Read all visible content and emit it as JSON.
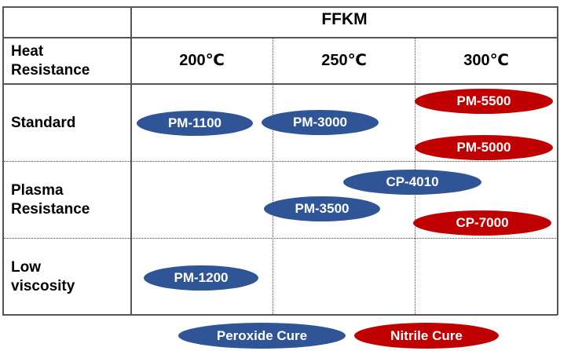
{
  "header": {
    "title": "FFKM",
    "heat_label": "Heat\nResistance",
    "temps": [
      "200℃",
      "250℃",
      "300℃"
    ]
  },
  "rows": [
    {
      "label": "Standard"
    },
    {
      "label": "Plasma\nResistance"
    },
    {
      "label": "Low\nviscosity"
    }
  ],
  "products": {
    "pm1100": "PM-1100",
    "pm3000": "PM-3000",
    "pm5500": "PM-5500",
    "pm5000": "PM-5000",
    "cp4010": "CP-4010",
    "pm3500": "PM-3500",
    "cp7000": "CP-7000",
    "pm1200": "PM-1200"
  },
  "legend": {
    "peroxide": "Peroxide Cure",
    "nitrile": "Nitrile Cure"
  },
  "colors": {
    "peroxide": "#2f5597",
    "nitrile": "#c00000"
  }
}
